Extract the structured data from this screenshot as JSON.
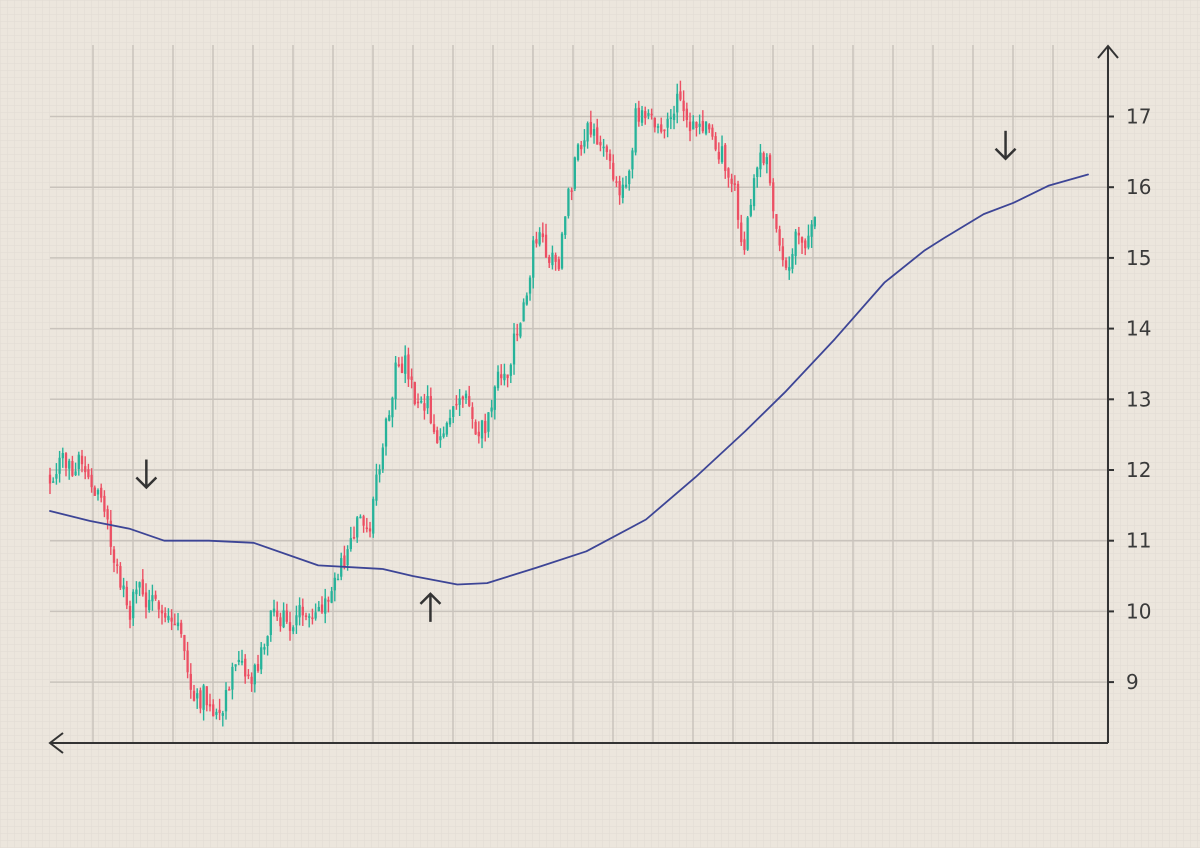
{
  "colors": {
    "background": "#ece6dd",
    "up": "#26b39a",
    "down": "#ec4f63",
    "moving_average": "#3d4596",
    "grid": "#c9c3bc",
    "axis": "#333333"
  },
  "chart_data": {
    "type": "candlestick",
    "title": "",
    "xlabel": "",
    "ylabel": "",
    "ylim": [
      8.2,
      17.9
    ],
    "y_ticks": [
      "9",
      "10",
      "11",
      "12",
      "13",
      "14",
      "15",
      "16",
      "17"
    ],
    "grid": true,
    "candle_count": 240,
    "series": [
      {
        "type": "candlestick",
        "approximate_close_path": [
          [
            0,
            11.9
          ],
          [
            10,
            12.2
          ],
          [
            20,
            12.0
          ],
          [
            30,
            12.2
          ],
          [
            40,
            11.9
          ],
          [
            50,
            11.6
          ],
          [
            60,
            11.1
          ],
          [
            70,
            10.4
          ],
          [
            80,
            10.0
          ],
          [
            90,
            10.4
          ],
          [
            100,
            10.0
          ],
          [
            110,
            10.2
          ],
          [
            120,
            9.9
          ],
          [
            130,
            9.8
          ],
          [
            140,
            9.0
          ],
          [
            150,
            8.8
          ],
          [
            160,
            8.8
          ],
          [
            170,
            8.5
          ],
          [
            180,
            9.0
          ],
          [
            190,
            9.2
          ],
          [
            200,
            9.0
          ],
          [
            210,
            9.2
          ],
          [
            220,
            9.8
          ],
          [
            230,
            10.0
          ],
          [
            240,
            9.8
          ],
          [
            250,
            9.9
          ],
          [
            260,
            10.1
          ],
          [
            270,
            10.0
          ],
          [
            280,
            10.3
          ],
          [
            290,
            10.5
          ],
          [
            300,
            10.9
          ],
          [
            310,
            11.3
          ],
          [
            320,
            11.0
          ],
          [
            330,
            12.0
          ],
          [
            340,
            12.8
          ],
          [
            350,
            13.6
          ],
          [
            360,
            13.4
          ],
          [
            370,
            12.8
          ],
          [
            380,
            12.9
          ],
          [
            390,
            12.3
          ],
          [
            400,
            12.7
          ],
          [
            410,
            13.1
          ],
          [
            420,
            13.0
          ],
          [
            430,
            12.4
          ],
          [
            440,
            12.7
          ],
          [
            450,
            13.2
          ],
          [
            460,
            13.4
          ],
          [
            470,
            13.9
          ],
          [
            480,
            14.5
          ],
          [
            490,
            15.4
          ],
          [
            500,
            15.1
          ],
          [
            510,
            14.8
          ],
          [
            520,
            15.7
          ],
          [
            530,
            16.5
          ],
          [
            540,
            16.9
          ],
          [
            550,
            16.8
          ],
          [
            560,
            16.4
          ],
          [
            570,
            15.9
          ],
          [
            580,
            16.1
          ],
          [
            590,
            17.0
          ],
          [
            600,
            16.9
          ],
          [
            610,
            16.9
          ],
          [
            620,
            16.8
          ],
          [
            630,
            17.3
          ],
          [
            640,
            16.9
          ],
          [
            650,
            16.8
          ],
          [
            660,
            16.9
          ],
          [
            670,
            16.5
          ],
          [
            680,
            16.4
          ],
          [
            690,
            15.9
          ],
          [
            695,
            15.2
          ],
          [
            700,
            15.3
          ],
          [
            710,
            16.2
          ],
          [
            720,
            16.5
          ],
          [
            730,
            15.6
          ],
          [
            740,
            14.9
          ],
          [
            750,
            15.2
          ],
          [
            760,
            15.3
          ],
          [
            770,
            15.5
          ]
        ]
      },
      {
        "type": "line",
        "values": [
          [
            0,
            11.42
          ],
          [
            40,
            11.28
          ],
          [
            80,
            11.17
          ],
          [
            115,
            11.0
          ],
          [
            160,
            11.0
          ],
          [
            205,
            10.97
          ],
          [
            270,
            10.65
          ],
          [
            335,
            10.6
          ],
          [
            365,
            10.5
          ],
          [
            410,
            10.38
          ],
          [
            440,
            10.4
          ],
          [
            490,
            10.62
          ],
          [
            540,
            10.85
          ],
          [
            600,
            11.3
          ],
          [
            650,
            11.9
          ],
          [
            700,
            12.55
          ],
          [
            740,
            13.1
          ],
          [
            790,
            13.85
          ],
          [
            840,
            14.65
          ],
          [
            880,
            15.1
          ],
          [
            900,
            15.28
          ],
          [
            940,
            15.62
          ],
          [
            970,
            15.78
          ],
          [
            1005,
            16.02
          ],
          [
            1045,
            16.18
          ]
        ]
      }
    ],
    "annotations": [
      {
        "type": "arrow",
        "direction": "down",
        "x": 97,
        "y": 11.95
      },
      {
        "type": "arrow",
        "direction": "up",
        "x": 383,
        "y": 10.05
      },
      {
        "type": "arrow",
        "direction": "down",
        "x": 962,
        "y": 16.6
      }
    ]
  }
}
